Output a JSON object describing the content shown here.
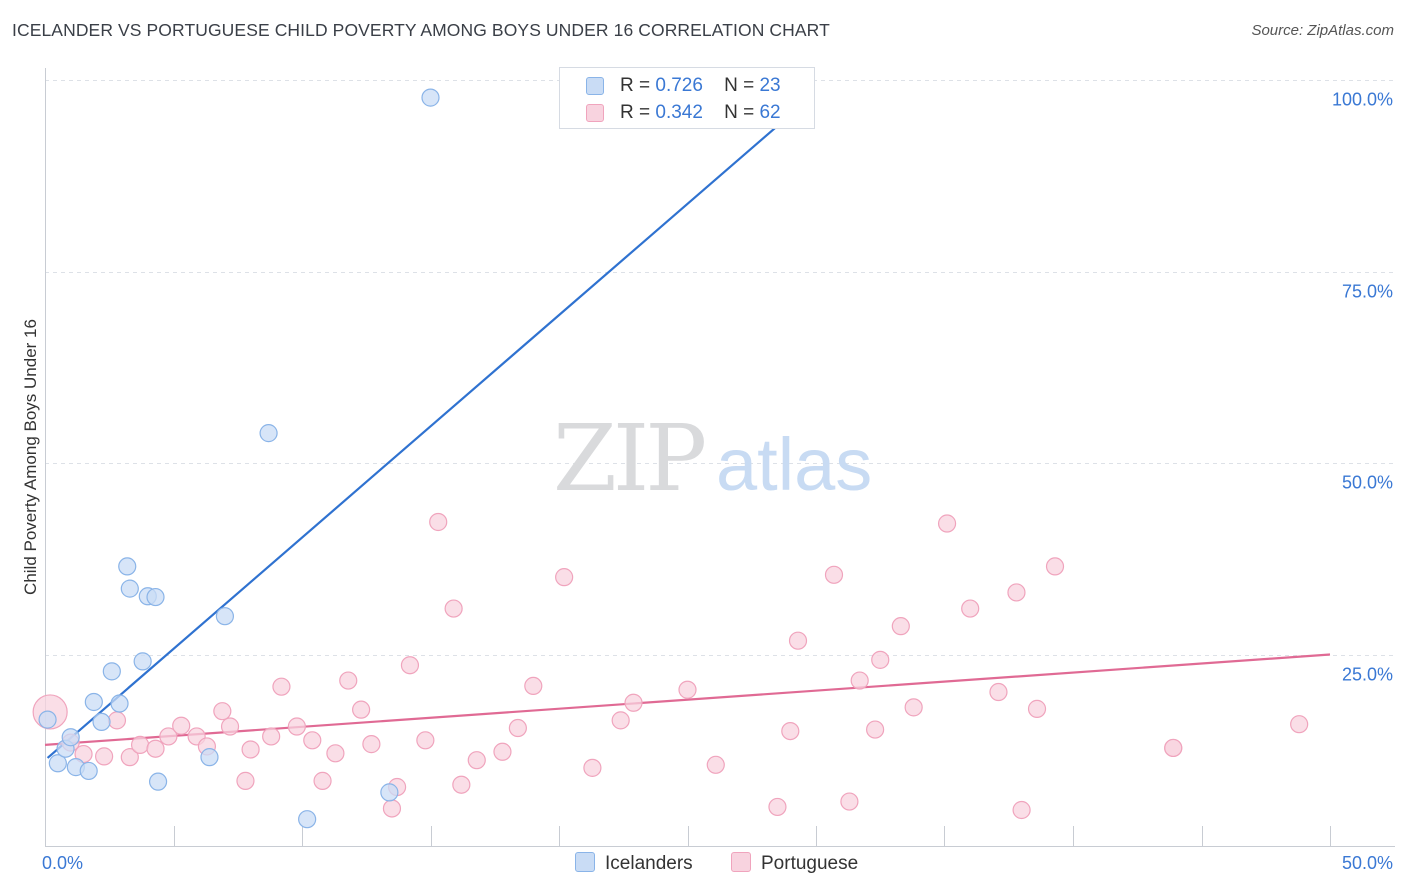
{
  "chart_data": {
    "type": "scatter",
    "title": "ICELANDER VS PORTUGUESE CHILD POVERTY AMONG BOYS UNDER 16 CORRELATION CHART",
    "source": "Source: ZipAtlas.com",
    "ylabel": "Child Poverty Among Boys Under 16",
    "xlim": [
      0,
      50
    ],
    "ylim": [
      0,
      100
    ],
    "x_tick_labels": [
      "0.0%",
      "50.0%"
    ],
    "y_ticks": [
      25,
      50,
      75,
      100
    ],
    "y_tick_labels": [
      "25.0%",
      "50.0%",
      "75.0%",
      "100.0%"
    ],
    "watermark": {
      "zip": "ZIP",
      "atlas": "atlas"
    },
    "legend": {
      "r_label": "R =",
      "n_label": "N =",
      "entries": [
        {
          "r": "0.726",
          "n": "23"
        },
        {
          "r": "0.342",
          "n": "62"
        }
      ]
    },
    "series": [
      {
        "name": "Icelanders",
        "color": "#8ab4e8",
        "fill": "#c9dcf5",
        "line_color": "#2f72d0",
        "trend": {
          "x": [
            0.1,
            28.5
          ],
          "y": [
            11.5,
            94.0
          ],
          "ext_x": [
            28.5,
            29.6
          ],
          "ext_y": [
            94.0,
            98.0
          ]
        },
        "points": [
          [
            0.1,
            16.5
          ],
          [
            0.5,
            10.8
          ],
          [
            0.8,
            12.7
          ],
          [
            1.0,
            14.2
          ],
          [
            1.2,
            10.3
          ],
          [
            1.7,
            9.8
          ],
          [
            1.9,
            18.8
          ],
          [
            2.2,
            16.2
          ],
          [
            2.6,
            22.8
          ],
          [
            2.9,
            18.6
          ],
          [
            3.2,
            36.5
          ],
          [
            3.3,
            33.6
          ],
          [
            3.8,
            24.1
          ],
          [
            4.0,
            32.6
          ],
          [
            4.3,
            32.5
          ],
          [
            4.4,
            8.4
          ],
          [
            6.4,
            11.6
          ],
          [
            7.0,
            30.0
          ],
          [
            8.7,
            53.9
          ],
          [
            10.2,
            3.5
          ],
          [
            13.4,
            7.0
          ],
          [
            15.0,
            97.7
          ],
          [
            28.0,
            97.7
          ]
        ]
      },
      {
        "name": "Portuguese",
        "color": "#f0a4bd",
        "fill": "#f8d3df",
        "line_color": "#e06a94",
        "trend": {
          "x": [
            0,
            50
          ],
          "y": [
            13.2,
            25.0
          ]
        },
        "points": [
          [
            0.2,
            17.5
          ],
          [
            1.0,
            13.5
          ],
          [
            1.5,
            12.0
          ],
          [
            2.3,
            11.7
          ],
          [
            2.8,
            16.4
          ],
          [
            3.3,
            11.6
          ],
          [
            3.7,
            13.2
          ],
          [
            4.3,
            12.7
          ],
          [
            4.8,
            14.3
          ],
          [
            5.3,
            15.7
          ],
          [
            5.9,
            14.3
          ],
          [
            6.3,
            13.0
          ],
          [
            6.9,
            17.6
          ],
          [
            7.2,
            15.6
          ],
          [
            7.8,
            8.5
          ],
          [
            8.0,
            12.6
          ],
          [
            8.8,
            14.3
          ],
          [
            9.2,
            20.8
          ],
          [
            9.8,
            15.6
          ],
          [
            10.4,
            13.8
          ],
          [
            10.8,
            8.5
          ],
          [
            11.3,
            12.1
          ],
          [
            11.8,
            21.6
          ],
          [
            12.3,
            17.8
          ],
          [
            12.7,
            13.3
          ],
          [
            13.5,
            4.9
          ],
          [
            13.7,
            7.7
          ],
          [
            14.2,
            23.6
          ],
          [
            14.8,
            13.8
          ],
          [
            15.3,
            42.3
          ],
          [
            15.9,
            31.0
          ],
          [
            16.2,
            8.0
          ],
          [
            16.8,
            11.2
          ],
          [
            17.8,
            12.3
          ],
          [
            18.4,
            15.4
          ],
          [
            19.0,
            20.9
          ],
          [
            20.2,
            35.1
          ],
          [
            21.3,
            10.2
          ],
          [
            22.4,
            16.4
          ],
          [
            22.9,
            18.7
          ],
          [
            25.0,
            20.4
          ],
          [
            26.1,
            10.6
          ],
          [
            28.5,
            5.1
          ],
          [
            29.0,
            15.0
          ],
          [
            29.3,
            26.8
          ],
          [
            30.7,
            35.4
          ],
          [
            31.3,
            5.8
          ],
          [
            31.7,
            21.6
          ],
          [
            32.3,
            15.2
          ],
          [
            32.5,
            24.3
          ],
          [
            33.3,
            28.7
          ],
          [
            33.8,
            18.1
          ],
          [
            35.1,
            42.1
          ],
          [
            36.0,
            31.0
          ],
          [
            37.1,
            20.1
          ],
          [
            37.8,
            33.1
          ],
          [
            38.0,
            4.7
          ],
          [
            38.6,
            17.9
          ],
          [
            39.3,
            36.5
          ],
          [
            43.9,
            12.8
          ],
          [
            48.8,
            15.9
          ],
          [
            43.9,
            12.8
          ]
        ]
      }
    ]
  }
}
